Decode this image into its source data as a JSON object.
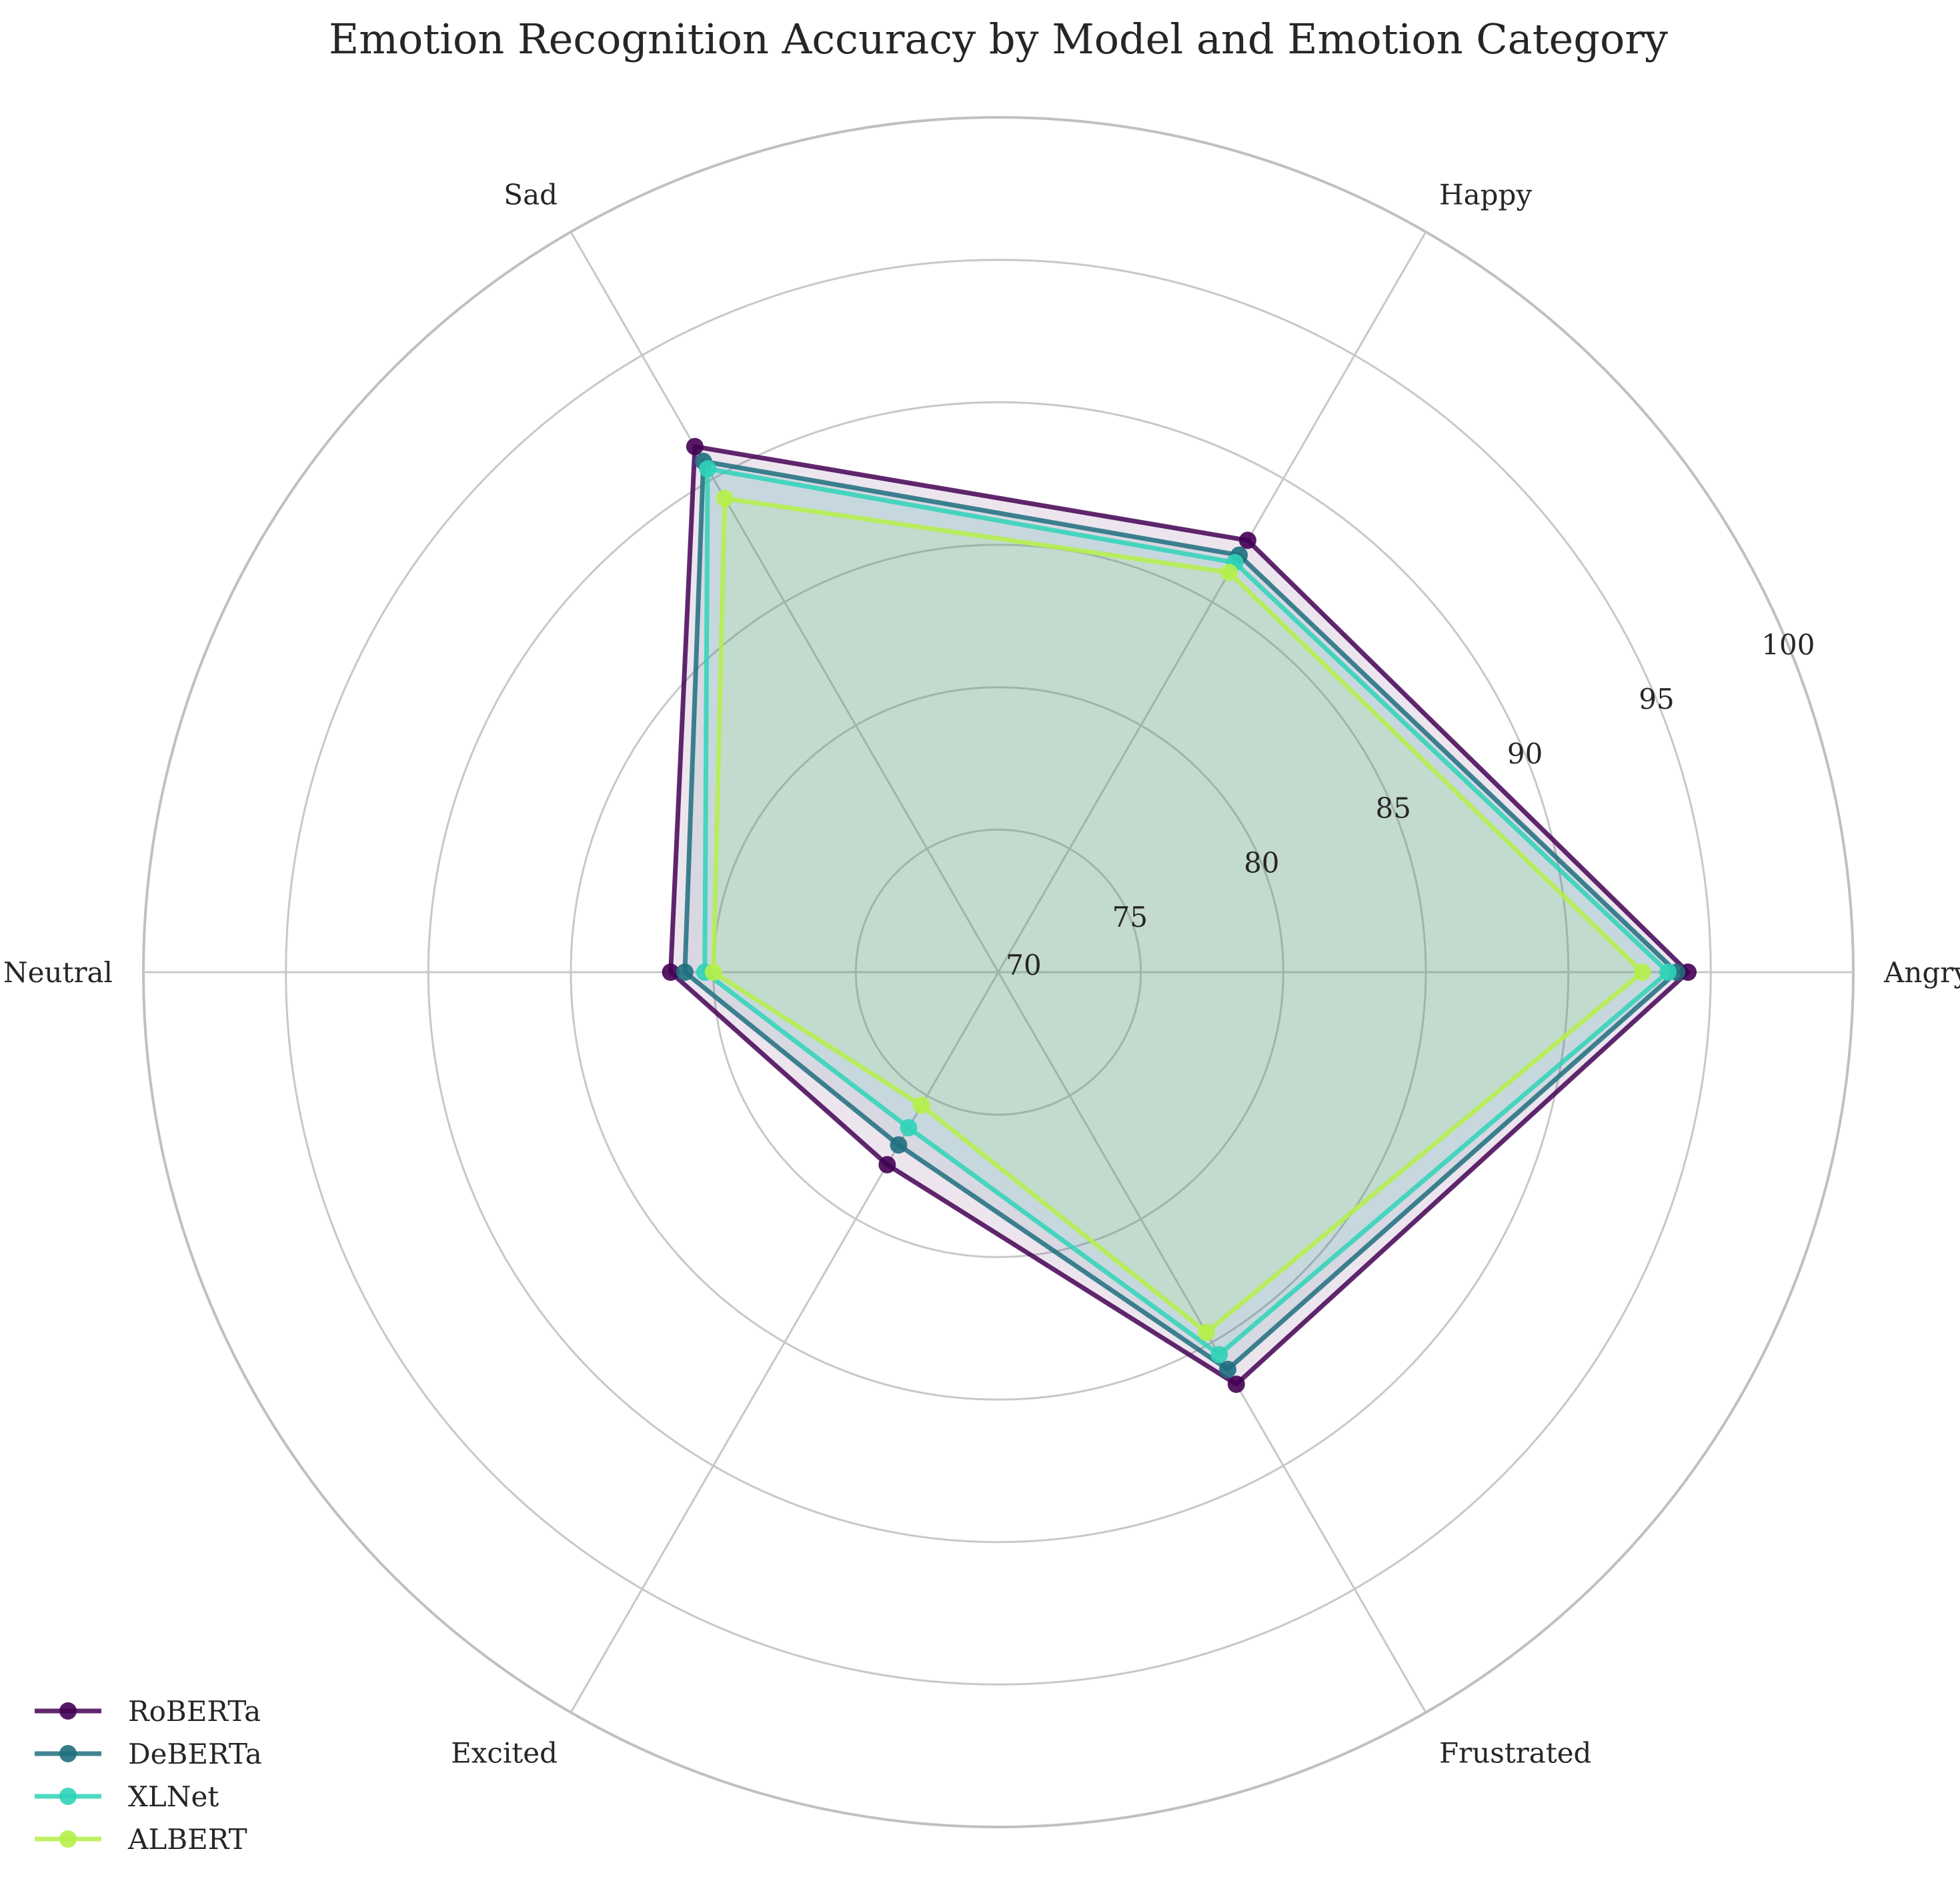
{
  "chart_data": {
    "type": "radar",
    "title": "Emotion Recognition Accuracy by Model and Emotion Category",
    "categories": [
      "Angry",
      "Happy",
      "Sad",
      "Neutral",
      "Excited",
      "Frustrated"
    ],
    "rlim": [
      70,
      100
    ],
    "rticks": [
      "70",
      "75",
      "80",
      "85",
      "90",
      "95",
      "100"
    ],
    "grid": true,
    "legend_position": "bottom-left",
    "series": [
      {
        "name": "RoBERTa",
        "color": "#440154",
        "values": [
          94.2,
          87.5,
          91.3,
          81.5,
          77.8,
          86.7
        ]
      },
      {
        "name": "DeBERTa",
        "color": "#1f6f7e",
        "values": [
          93.8,
          86.9,
          90.7,
          81.0,
          77.0,
          86.1
        ]
      },
      {
        "name": "XLNet",
        "color": "#2fd3b8",
        "values": [
          93.5,
          86.6,
          90.4,
          80.3,
          76.3,
          85.5
        ]
      },
      {
        "name": "ALBERT",
        "color": "#b5f04a",
        "values": [
          92.6,
          86.2,
          89.2,
          80.0,
          75.4,
          84.6
        ]
      }
    ]
  }
}
